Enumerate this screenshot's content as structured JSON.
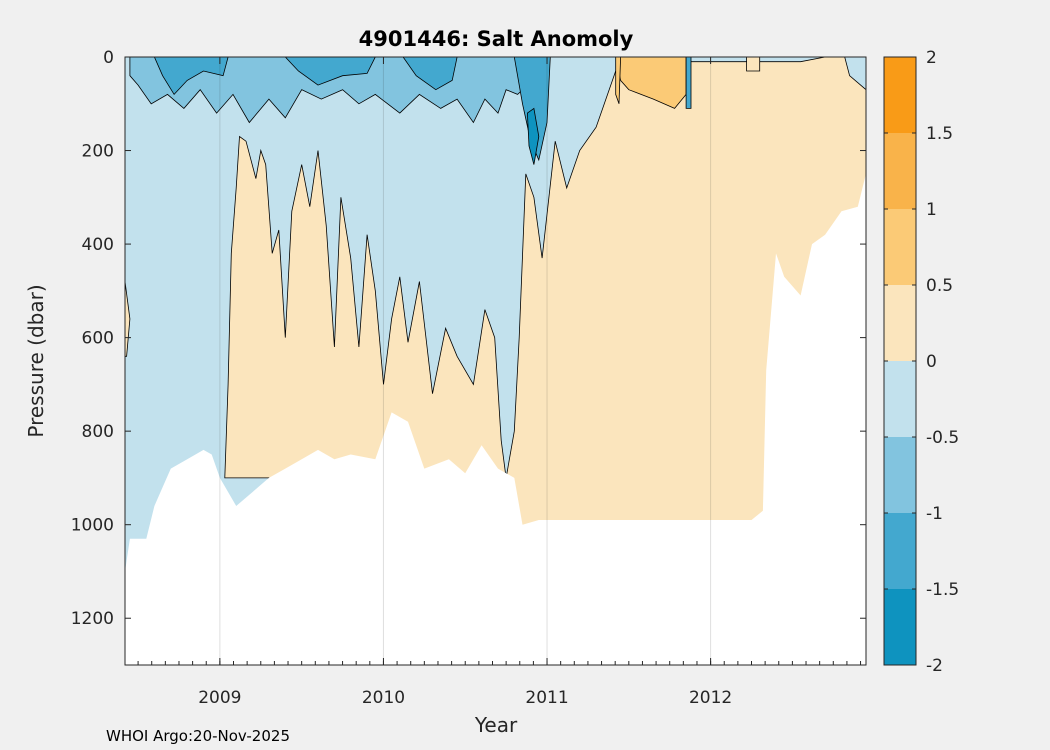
{
  "chart_data": {
    "type": "heatmap",
    "title": "4901446: Salt Anomoly",
    "xlabel": "Year",
    "ylabel": "Pressure (dbar)",
    "xlim": [
      2008.42,
      2012.95
    ],
    "ylim": [
      0,
      1300
    ],
    "y_reversed": true,
    "x_ticks": [
      2009,
      2010,
      2011,
      2012
    ],
    "y_ticks": [
      0,
      200,
      400,
      600,
      800,
      1000,
      1200
    ],
    "grid": true,
    "colorbar": {
      "range": [
        -2,
        2
      ],
      "ticks": [
        "2",
        "1.5",
        "1",
        "0.5",
        "0",
        "-0.5",
        "-1",
        "-1.5",
        "-2"
      ],
      "levels": [
        {
          "from": -2.0,
          "to": -1.5,
          "color": "#0e93bf"
        },
        {
          "from": -1.5,
          "to": -1.0,
          "color": "#43a8cf"
        },
        {
          "from": -1.0,
          "to": -0.5,
          "color": "#82c4df"
        },
        {
          "from": -0.5,
          "to": 0.0,
          "color": "#c2e1ed"
        },
        {
          "from": 0.0,
          "to": 0.5,
          "color": "#fbe5bd"
        },
        {
          "from": 0.5,
          "to": 1.0,
          "color": "#fbca76"
        },
        {
          "from": 1.0,
          "to": 1.5,
          "color": "#f9b34a"
        },
        {
          "from": 1.5,
          "to": 2.0,
          "color": "#f99b17"
        }
      ]
    },
    "max_depth_profile": [
      {
        "year": 2008.42,
        "p": 1100
      },
      {
        "year": 2008.45,
        "p": 1030
      },
      {
        "year": 2008.55,
        "p": 1030
      },
      {
        "year": 2008.6,
        "p": 960
      },
      {
        "year": 2008.65,
        "p": 920
      },
      {
        "year": 2008.7,
        "p": 880
      },
      {
        "year": 2008.8,
        "p": 860
      },
      {
        "year": 2008.9,
        "p": 840
      },
      {
        "year": 2008.95,
        "p": 850
      },
      {
        "year": 2009.0,
        "p": 900
      },
      {
        "year": 2009.1,
        "p": 960
      },
      {
        "year": 2009.2,
        "p": 930
      },
      {
        "year": 2009.3,
        "p": 900
      },
      {
        "year": 2009.4,
        "p": 880
      },
      {
        "year": 2009.5,
        "p": 860
      },
      {
        "year": 2009.6,
        "p": 840
      },
      {
        "year": 2009.7,
        "p": 860
      },
      {
        "year": 2009.8,
        "p": 850
      },
      {
        "year": 2009.95,
        "p": 860
      },
      {
        "year": 2010.05,
        "p": 760
      },
      {
        "year": 2010.15,
        "p": 780
      },
      {
        "year": 2010.25,
        "p": 880
      },
      {
        "year": 2010.4,
        "p": 860
      },
      {
        "year": 2010.5,
        "p": 890
      },
      {
        "year": 2010.6,
        "p": 830
      },
      {
        "year": 2010.7,
        "p": 880
      },
      {
        "year": 2010.8,
        "p": 900
      },
      {
        "year": 2010.85,
        "p": 1000
      },
      {
        "year": 2010.95,
        "p": 990
      },
      {
        "year": 2011.1,
        "p": 990
      },
      {
        "year": 2011.3,
        "p": 990
      },
      {
        "year": 2011.5,
        "p": 990
      },
      {
        "year": 2011.7,
        "p": 990
      },
      {
        "year": 2011.9,
        "p": 990
      },
      {
        "year": 2012.1,
        "p": 990
      },
      {
        "year": 2012.25,
        "p": 990
      },
      {
        "year": 2012.32,
        "p": 970
      },
      {
        "year": 2012.34,
        "p": 670
      },
      {
        "year": 2012.4,
        "p": 420
      },
      {
        "year": 2012.45,
        "p": 470
      },
      {
        "year": 2012.55,
        "p": 510
      },
      {
        "year": 2012.62,
        "p": 400
      },
      {
        "year": 2012.7,
        "p": 380
      },
      {
        "year": 2012.8,
        "p": 330
      },
      {
        "year": 2012.9,
        "p": 320
      },
      {
        "year": 2012.95,
        "p": 250
      }
    ],
    "regions": [
      {
        "level": -0.25,
        "poly": [
          [
            2008.42,
            0
          ],
          [
            2012.95,
            0
          ],
          [
            2012.95,
            1300
          ],
          [
            2008.42,
            1300
          ]
        ]
      },
      {
        "level": 0.25,
        "poly": [
          [
            2008.42,
            480
          ],
          [
            2008.45,
            560
          ],
          [
            2008.43,
            640
          ],
          [
            2008.42,
            640
          ]
        ]
      },
      {
        "level": 0.25,
        "poly": [
          [
            2009.03,
            900
          ],
          [
            2009.05,
            700
          ],
          [
            2009.07,
            420
          ],
          [
            2009.1,
            280
          ],
          [
            2009.12,
            170
          ],
          [
            2009.16,
            180
          ],
          [
            2009.22,
            260
          ],
          [
            2009.25,
            200
          ],
          [
            2009.28,
            230
          ],
          [
            2009.32,
            420
          ],
          [
            2009.36,
            370
          ],
          [
            2009.4,
            600
          ],
          [
            2009.44,
            330
          ],
          [
            2009.5,
            230
          ],
          [
            2009.55,
            320
          ],
          [
            2009.6,
            200
          ],
          [
            2009.65,
            360
          ],
          [
            2009.7,
            620
          ],
          [
            2009.74,
            300
          ],
          [
            2009.8,
            430
          ],
          [
            2009.85,
            620
          ],
          [
            2009.9,
            380
          ],
          [
            2009.95,
            500
          ],
          [
            2010.0,
            700
          ],
          [
            2010.05,
            560
          ],
          [
            2010.1,
            470
          ],
          [
            2010.15,
            610
          ],
          [
            2010.22,
            480
          ],
          [
            2010.3,
            720
          ],
          [
            2010.38,
            580
          ],
          [
            2010.45,
            640
          ],
          [
            2010.55,
            700
          ],
          [
            2010.62,
            540
          ],
          [
            2010.68,
            600
          ],
          [
            2010.72,
            820
          ],
          [
            2010.75,
            900
          ],
          [
            2009.03,
            900
          ]
        ]
      },
      {
        "level": 0.25,
        "poly": [
          [
            2010.75,
            900
          ],
          [
            2010.8,
            800
          ],
          [
            2010.83,
            600
          ],
          [
            2010.87,
            250
          ],
          [
            2010.92,
            300
          ],
          [
            2010.97,
            430
          ],
          [
            2011.05,
            180
          ],
          [
            2011.12,
            280
          ],
          [
            2011.2,
            200
          ],
          [
            2011.3,
            150
          ],
          [
            2011.35,
            100
          ],
          [
            2011.42,
            30
          ],
          [
            2011.5,
            10
          ],
          [
            2012.4,
            10
          ],
          [
            2012.55,
            10
          ],
          [
            2012.7,
            0
          ],
          [
            2012.82,
            0
          ],
          [
            2012.85,
            40
          ],
          [
            2012.95,
            70
          ],
          [
            2012.95,
            1300
          ],
          [
            2010.75,
            1300
          ]
        ]
      },
      {
        "level": 0.75,
        "poly": [
          [
            2011.42,
            0
          ],
          [
            2011.85,
            0
          ],
          [
            2011.85,
            80
          ],
          [
            2011.78,
            110
          ],
          [
            2011.65,
            90
          ],
          [
            2011.5,
            70
          ],
          [
            2011.45,
            50
          ]
        ]
      },
      {
        "level": 0.75,
        "poly": [
          [
            2011.42,
            0
          ],
          [
            2011.45,
            0
          ],
          [
            2011.44,
            100
          ],
          [
            2011.42,
            80
          ]
        ]
      },
      {
        "level": -0.75,
        "poly": [
          [
            2008.45,
            0
          ],
          [
            2010.9,
            0
          ],
          [
            2010.88,
            60
          ],
          [
            2010.82,
            80
          ],
          [
            2010.75,
            70
          ],
          [
            2010.7,
            120
          ],
          [
            2010.62,
            90
          ],
          [
            2010.55,
            140
          ],
          [
            2010.45,
            90
          ],
          [
            2010.35,
            110
          ],
          [
            2010.22,
            80
          ],
          [
            2010.1,
            120
          ],
          [
            2009.95,
            80
          ],
          [
            2009.85,
            100
          ],
          [
            2009.75,
            70
          ],
          [
            2009.62,
            90
          ],
          [
            2009.5,
            70
          ],
          [
            2009.4,
            130
          ],
          [
            2009.3,
            90
          ],
          [
            2009.18,
            140
          ],
          [
            2009.08,
            80
          ],
          [
            2008.98,
            120
          ],
          [
            2008.88,
            70
          ],
          [
            2008.78,
            110
          ],
          [
            2008.68,
            80
          ],
          [
            2008.58,
            100
          ],
          [
            2008.5,
            60
          ],
          [
            2008.45,
            40
          ]
        ]
      },
      {
        "level": -1.25,
        "poly": [
          [
            2008.6,
            0
          ],
          [
            2009.05,
            0
          ],
          [
            2009.02,
            40
          ],
          [
            2008.9,
            30
          ],
          [
            2008.8,
            50
          ],
          [
            2008.72,
            80
          ],
          [
            2008.65,
            40
          ]
        ]
      },
      {
        "level": -1.25,
        "poly": [
          [
            2009.4,
            0
          ],
          [
            2009.95,
            0
          ],
          [
            2009.9,
            35
          ],
          [
            2009.75,
            40
          ],
          [
            2009.6,
            60
          ],
          [
            2009.48,
            30
          ]
        ]
      },
      {
        "level": -1.25,
        "poly": [
          [
            2010.12,
            0
          ],
          [
            2010.45,
            0
          ],
          [
            2010.42,
            50
          ],
          [
            2010.32,
            70
          ],
          [
            2010.2,
            40
          ]
        ]
      },
      {
        "level": -1.25,
        "poly": [
          [
            2010.8,
            0
          ],
          [
            2011.02,
            0
          ],
          [
            2011.0,
            140
          ],
          [
            2010.95,
            220
          ],
          [
            2010.9,
            180
          ],
          [
            2010.85,
            100
          ]
        ]
      },
      {
        "level": -1.25,
        "poly": [
          [
            2011.85,
            0
          ],
          [
            2011.88,
            0
          ],
          [
            2011.88,
            110
          ],
          [
            2011.85,
            110
          ]
        ]
      },
      {
        "level": 0.25,
        "poly": [
          [
            2012.22,
            0
          ],
          [
            2012.3,
            0
          ],
          [
            2012.3,
            30
          ],
          [
            2012.22,
            30
          ]
        ]
      },
      {
        "level": -1.75,
        "poly": [
          [
            2010.88,
            120
          ],
          [
            2010.92,
            110
          ],
          [
            2010.95,
            170
          ],
          [
            2010.92,
            230
          ],
          [
            2010.89,
            190
          ]
        ]
      }
    ]
  },
  "footer": {
    "text": "WHOI Argo:20-Nov-2025"
  }
}
